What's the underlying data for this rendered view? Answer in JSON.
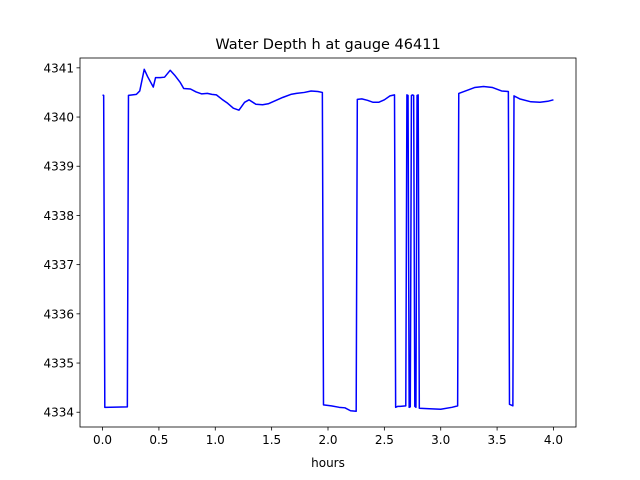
{
  "chart_data": {
    "type": "line",
    "title": "Water Depth h at gauge 46411",
    "xlabel": "hours",
    "ylabel": "",
    "xlim": [
      -0.2,
      4.2
    ],
    "ylim": [
      4333.7,
      4341.2
    ],
    "xticks": [
      0.0,
      0.5,
      1.0,
      1.5,
      2.0,
      2.5,
      3.0,
      3.5,
      4.0
    ],
    "xtick_labels": [
      "0.0",
      "0.5",
      "1.0",
      "1.5",
      "2.0",
      "2.5",
      "3.0",
      "3.5",
      "4.0"
    ],
    "yticks": [
      4334,
      4335,
      4336,
      4337,
      4338,
      4339,
      4340,
      4341
    ],
    "ytick_labels": [
      "4334",
      "4335",
      "4336",
      "4337",
      "4338",
      "4339",
      "4340",
      "4341"
    ],
    "grid": false,
    "series": [
      {
        "color": "#0000ff",
        "x": [
          0.0,
          0.01,
          0.02,
          0.22,
          0.23,
          0.3,
          0.33,
          0.37,
          0.4,
          0.45,
          0.47,
          0.51,
          0.55,
          0.6,
          0.64,
          0.69,
          0.72,
          0.78,
          0.83,
          0.88,
          0.93,
          0.97,
          1.01,
          1.06,
          1.11,
          1.16,
          1.21,
          1.26,
          1.3,
          1.36,
          1.42,
          1.47,
          1.53,
          1.6,
          1.67,
          1.72,
          1.79,
          1.85,
          1.91,
          1.95,
          1.96,
          2.03,
          2.1,
          2.15,
          2.2,
          2.25,
          2.26,
          2.3,
          2.35,
          2.4,
          2.45,
          2.5,
          2.55,
          2.59,
          2.6,
          2.61,
          2.62,
          2.64,
          2.69,
          2.7,
          2.71,
          2.72,
          2.73,
          2.74,
          2.75,
          2.76,
          2.77,
          2.78,
          2.79,
          2.8,
          2.81,
          2.9,
          3.0,
          3.1,
          3.15,
          3.16,
          3.22,
          3.3,
          3.38,
          3.46,
          3.54,
          3.6,
          3.61,
          3.64,
          3.65,
          3.7,
          3.8,
          3.88,
          3.95,
          4.0
        ],
        "y": [
          4340.45,
          4340.44,
          4334.1,
          4334.11,
          4340.44,
          4340.46,
          4340.53,
          4340.97,
          4340.82,
          4340.61,
          4340.8,
          4340.8,
          4340.81,
          4340.95,
          4340.85,
          4340.7,
          4340.58,
          4340.57,
          4340.51,
          4340.47,
          4340.48,
          4340.46,
          4340.45,
          4340.36,
          4340.28,
          4340.18,
          4340.14,
          4340.3,
          4340.35,
          4340.26,
          4340.25,
          4340.27,
          4340.33,
          4340.4,
          4340.46,
          4340.48,
          4340.5,
          4340.53,
          4340.52,
          4340.5,
          4334.15,
          4334.13,
          4334.1,
          4334.09,
          4334.03,
          4334.02,
          4340.36,
          4340.37,
          4340.34,
          4340.3,
          4340.3,
          4340.35,
          4340.43,
          4340.45,
          4334.1,
          4334.11,
          4334.12,
          4334.12,
          4334.13,
          4340.45,
          4340.44,
          4334.1,
          4334.11,
          4340.44,
          4340.45,
          4340.44,
          4334.12,
          4334.1,
          4340.44,
          4340.45,
          4334.08,
          4334.07,
          4334.06,
          4334.1,
          4334.13,
          4340.48,
          4340.53,
          4340.6,
          4340.62,
          4340.6,
          4340.53,
          4340.52,
          4334.16,
          4334.13,
          4340.43,
          4340.37,
          4340.31,
          4340.3,
          4340.32,
          4340.35
        ]
      }
    ]
  }
}
